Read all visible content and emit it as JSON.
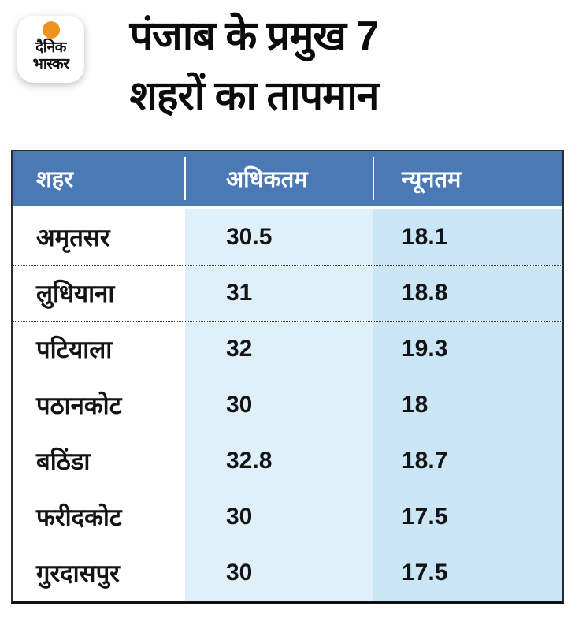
{
  "logo": {
    "name": "दैनिक भास्कर",
    "line1": "दैनिक",
    "line2": "भास्कर"
  },
  "title": {
    "line1": "पंजाब के प्रमुख 7",
    "line2": "शहरों का तापमान"
  },
  "chart_data": {
    "type": "table",
    "title": "पंजाब के प्रमुख 7 शहरों का तापमान",
    "columns": [
      "शहर",
      "अधिकतम",
      "न्यूनतम"
    ],
    "rows": [
      {
        "city": "अमृतसर",
        "max": "30.5",
        "min": "18.1"
      },
      {
        "city": "लुधियाना",
        "max": "31",
        "min": "18.8"
      },
      {
        "city": "पटियाला",
        "max": "32",
        "min": "19.3"
      },
      {
        "city": "पठानकोट",
        "max": "30",
        "min": "18"
      },
      {
        "city": "बठिंडा",
        "max": "32.8",
        "min": "18.7"
      },
      {
        "city": "फरीदकोट",
        "max": "30",
        "min": "17.5"
      },
      {
        "city": "गुरदासपुर",
        "max": "30",
        "min": "17.5"
      }
    ]
  },
  "colors": {
    "header_bg": "#4b79b6",
    "max_col_bg": "#dff0fb",
    "min_col_bg": "#c9e5f6",
    "sun_orange": "#f0921e",
    "border_dark": "#2c2c2c"
  }
}
